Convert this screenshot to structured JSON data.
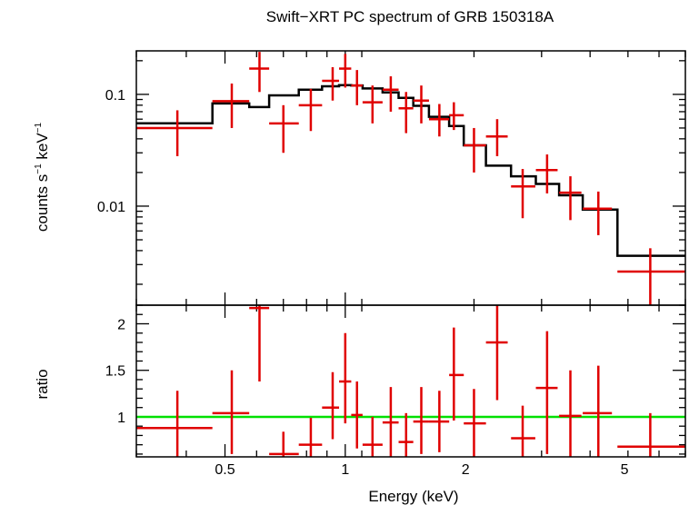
{
  "chart_data": [
    {
      "type": "scatter",
      "panel": "spectrum",
      "title": "Swift−XRT PC spectrum of GRB 150318A",
      "xlabel": "Energy (keV)",
      "ylabel_main": "counts s",
      "ylabel_sup1": "−1",
      "ylabel_mid": " keV",
      "ylabel_sup2": "−1",
      "xscale": "log",
      "yscale": "log",
      "xlim": [
        0.3,
        7.1
      ],
      "ylim": [
        0.0013,
        0.245
      ],
      "xticks": [
        {
          "value": 0.5,
          "label": "0.5"
        },
        {
          "value": 1,
          "label": "1"
        },
        {
          "value": 2,
          "label": "2"
        },
        {
          "value": 5,
          "label": "5"
        }
      ],
      "yticks": [
        {
          "value": 0.1,
          "label": "0.1"
        },
        {
          "value": 0.01,
          "label": "0.01"
        }
      ],
      "grid": false,
      "data_color": "#e00000",
      "model_color": "#000000",
      "data": [
        {
          "x": 0.38,
          "xlo": 0.3,
          "xhi": 0.465,
          "y": 0.05,
          "ylo": 0.028,
          "yhi": 0.072
        },
        {
          "x": 0.52,
          "xlo": 0.465,
          "xhi": 0.575,
          "y": 0.087,
          "ylo": 0.05,
          "yhi": 0.125
        },
        {
          "x": 0.61,
          "xlo": 0.575,
          "xhi": 0.645,
          "y": 0.17,
          "ylo": 0.105,
          "yhi": 0.24
        },
        {
          "x": 0.7,
          "xlo": 0.645,
          "xhi": 0.765,
          "y": 0.055,
          "ylo": 0.03,
          "yhi": 0.08
        },
        {
          "x": 0.82,
          "xlo": 0.765,
          "xhi": 0.875,
          "y": 0.08,
          "ylo": 0.047,
          "yhi": 0.112
        },
        {
          "x": 0.93,
          "xlo": 0.875,
          "xhi": 0.965,
          "y": 0.132,
          "ylo": 0.088,
          "yhi": 0.175
        },
        {
          "x": 1.0,
          "xlo": 0.965,
          "xhi": 1.035,
          "y": 0.17,
          "ylo": 0.115,
          "yhi": 0.23
        },
        {
          "x": 1.07,
          "xlo": 1.035,
          "xhi": 1.105,
          "y": 0.12,
          "ylo": 0.08,
          "yhi": 0.165
        },
        {
          "x": 1.17,
          "xlo": 1.105,
          "xhi": 1.24,
          "y": 0.085,
          "ylo": 0.055,
          "yhi": 0.12
        },
        {
          "x": 1.3,
          "xlo": 1.24,
          "xhi": 1.36,
          "y": 0.11,
          "ylo": 0.07,
          "yhi": 0.145
        },
        {
          "x": 1.42,
          "xlo": 1.36,
          "xhi": 1.48,
          "y": 0.075,
          "ylo": 0.045,
          "yhi": 0.105
        },
        {
          "x": 1.55,
          "xlo": 1.48,
          "xhi": 1.62,
          "y": 0.088,
          "ylo": 0.055,
          "yhi": 0.12
        },
        {
          "x": 1.72,
          "xlo": 1.62,
          "xhi": 1.82,
          "y": 0.06,
          "ylo": 0.042,
          "yhi": 0.082
        },
        {
          "x": 1.87,
          "xlo": 1.82,
          "xhi": 1.98,
          "y": 0.065,
          "ylo": 0.048,
          "yhi": 0.085
        },
        {
          "x": 2.1,
          "xlo": 1.98,
          "xhi": 2.25,
          "y": 0.035,
          "ylo": 0.02,
          "yhi": 0.05
        },
        {
          "x": 2.4,
          "xlo": 2.25,
          "xhi": 2.55,
          "y": 0.042,
          "ylo": 0.028,
          "yhi": 0.06
        },
        {
          "x": 2.78,
          "xlo": 2.6,
          "xhi": 2.99,
          "y": 0.015,
          "ylo": 0.0078,
          "yhi": 0.0215
        },
        {
          "x": 3.2,
          "xlo": 3.0,
          "xhi": 3.4,
          "y": 0.021,
          "ylo": 0.013,
          "yhi": 0.029
        },
        {
          "x": 3.66,
          "xlo": 3.43,
          "xhi": 3.9,
          "y": 0.0132,
          "ylo": 0.0075,
          "yhi": 0.0185
        },
        {
          "x": 4.3,
          "xlo": 3.93,
          "xhi": 4.65,
          "y": 0.0095,
          "ylo": 0.0055,
          "yhi": 0.0135
        },
        {
          "x": 5.8,
          "xlo": 4.8,
          "xhi": 7.1,
          "y": 0.0026,
          "ylo": 0.0013,
          "yhi": 0.0042
        }
      ],
      "model": [
        {
          "xlo": 0.3,
          "xhi": 0.465,
          "y": 0.055
        },
        {
          "xlo": 0.465,
          "xhi": 0.575,
          "y": 0.083
        },
        {
          "xlo": 0.575,
          "xhi": 0.645,
          "y": 0.077
        },
        {
          "xlo": 0.645,
          "xhi": 0.765,
          "y": 0.098
        },
        {
          "xlo": 0.765,
          "xhi": 0.875,
          "y": 0.11
        },
        {
          "xlo": 0.875,
          "xhi": 0.965,
          "y": 0.118
        },
        {
          "xlo": 0.965,
          "xhi": 1.035,
          "y": 0.121
        },
        {
          "xlo": 1.035,
          "xhi": 1.105,
          "y": 0.12
        },
        {
          "xlo": 1.105,
          "xhi": 1.24,
          "y": 0.113
        },
        {
          "xlo": 1.24,
          "xhi": 1.36,
          "y": 0.104
        },
        {
          "xlo": 1.36,
          "xhi": 1.48,
          "y": 0.093
        },
        {
          "xlo": 1.48,
          "xhi": 1.62,
          "y": 0.079
        },
        {
          "xlo": 1.62,
          "xhi": 1.82,
          "y": 0.063
        },
        {
          "xlo": 1.82,
          "xhi": 1.98,
          "y": 0.052
        },
        {
          "xlo": 1.98,
          "xhi": 2.25,
          "y": 0.035
        },
        {
          "xlo": 2.25,
          "xhi": 2.6,
          "y": 0.023
        },
        {
          "xlo": 2.6,
          "xhi": 3.0,
          "y": 0.0185
        },
        {
          "xlo": 3.0,
          "xhi": 3.43,
          "y": 0.0158
        },
        {
          "xlo": 3.43,
          "xhi": 3.93,
          "y": 0.0125
        },
        {
          "xlo": 3.93,
          "xhi": 4.8,
          "y": 0.0093
        },
        {
          "xlo": 4.8,
          "xhi": 7.1,
          "y": 0.0036
        }
      ]
    },
    {
      "type": "scatter",
      "panel": "ratio",
      "ylabel": "ratio",
      "xscale": "log",
      "yscale": "linear",
      "xlim": [
        0.3,
        7.1
      ],
      "ylim": [
        0.57,
        2.2
      ],
      "yticks": [
        {
          "value": 1,
          "label": "1"
        },
        {
          "value": 1.5,
          "label": "1.5"
        },
        {
          "value": 2,
          "label": "2"
        }
      ],
      "reference_line": 1,
      "reference_color": "#00e000",
      "data_color": "#e00000",
      "data": [
        {
          "x": 0.38,
          "xlo": 0.3,
          "xhi": 0.465,
          "y": 0.88,
          "ylo": 0.57,
          "yhi": 1.28
        },
        {
          "x": 0.52,
          "xlo": 0.465,
          "xhi": 0.575,
          "y": 1.04,
          "ylo": 0.6,
          "yhi": 1.5
        },
        {
          "x": 0.61,
          "xlo": 0.575,
          "xhi": 0.645,
          "y": 2.17,
          "ylo": 1.38,
          "yhi": 2.2
        },
        {
          "x": 0.7,
          "xlo": 0.645,
          "xhi": 0.765,
          "y": 0.6,
          "ylo": 0.57,
          "yhi": 0.84
        },
        {
          "x": 0.82,
          "xlo": 0.765,
          "xhi": 0.875,
          "y": 0.7,
          "ylo": 0.57,
          "yhi": 0.99
        },
        {
          "x": 0.93,
          "xlo": 0.875,
          "xhi": 0.965,
          "y": 1.1,
          "ylo": 0.76,
          "yhi": 1.48
        },
        {
          "x": 1.0,
          "xlo": 0.965,
          "xhi": 1.035,
          "y": 1.38,
          "ylo": 0.93,
          "yhi": 1.9
        },
        {
          "x": 1.07,
          "xlo": 1.035,
          "xhi": 1.105,
          "y": 1.02,
          "ylo": 0.66,
          "yhi": 1.38
        },
        {
          "x": 1.17,
          "xlo": 1.105,
          "xhi": 1.24,
          "y": 0.7,
          "ylo": 0.57,
          "yhi": 1.0
        },
        {
          "x": 1.3,
          "xlo": 1.24,
          "xhi": 1.36,
          "y": 0.94,
          "ylo": 0.57,
          "yhi": 1.32
        },
        {
          "x": 1.42,
          "xlo": 1.36,
          "xhi": 1.48,
          "y": 0.73,
          "ylo": 0.57,
          "yhi": 1.04
        },
        {
          "x": 1.55,
          "xlo": 1.48,
          "xhi": 1.62,
          "y": 0.95,
          "ylo": 0.6,
          "yhi": 1.32
        },
        {
          "x": 1.72,
          "xlo": 1.62,
          "xhi": 1.82,
          "y": 0.95,
          "ylo": 0.62,
          "yhi": 1.28
        },
        {
          "x": 1.87,
          "xlo": 1.82,
          "xhi": 1.98,
          "y": 1.45,
          "ylo": 0.96,
          "yhi": 1.96
        },
        {
          "x": 2.1,
          "xlo": 1.98,
          "xhi": 2.25,
          "y": 0.93,
          "ylo": 0.57,
          "yhi": 1.3
        },
        {
          "x": 2.4,
          "xlo": 2.25,
          "xhi": 2.55,
          "y": 1.8,
          "ylo": 1.18,
          "yhi": 2.2
        },
        {
          "x": 2.78,
          "xlo": 2.6,
          "xhi": 2.99,
          "y": 0.77,
          "ylo": 0.57,
          "yhi": 1.12
        },
        {
          "x": 3.2,
          "xlo": 3.0,
          "xhi": 3.4,
          "y": 1.31,
          "ylo": 0.6,
          "yhi": 1.92
        },
        {
          "x": 3.66,
          "xlo": 3.43,
          "xhi": 3.9,
          "y": 1.01,
          "ylo": 0.57,
          "yhi": 1.5
        },
        {
          "x": 4.3,
          "xlo": 3.93,
          "xhi": 4.65,
          "y": 1.04,
          "ylo": 0.57,
          "yhi": 1.55
        },
        {
          "x": 5.8,
          "xlo": 4.8,
          "xhi": 7.1,
          "y": 0.68,
          "ylo": 0.57,
          "yhi": 1.04
        }
      ]
    }
  ]
}
